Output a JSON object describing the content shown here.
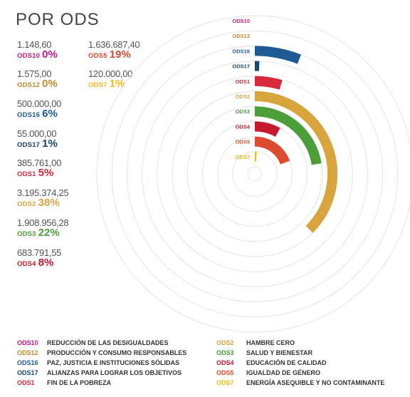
{
  "title": "POR ODS",
  "stats": [
    {
      "amount": "1.148,60",
      "code": "ODS10",
      "pct": "0%",
      "color": "#c5197d"
    },
    {
      "amount": "1.636.687,40",
      "code": "ODS5",
      "pct": "19%",
      "color": "#dd4a2f"
    },
    {
      "amount": "1.575,00",
      "code": "ODS12",
      "pct": "0%",
      "color": "#bf8b2e"
    },
    {
      "amount": "120.000,00",
      "code": "ODS7",
      "pct": "1%",
      "color": "#f2b815"
    },
    {
      "amount": "500.000,00",
      "code": "ODS16",
      "pct": "6%",
      "color": "#1e5b95"
    },
    {
      "amount": "55.000,00",
      "code": "ODS17",
      "pct": "1%",
      "color": "#19486a"
    },
    {
      "amount": "385.761,00",
      "code": "ODS1",
      "pct": "5%",
      "color": "#d8283a"
    },
    {
      "amount": "3.195.374,25",
      "code": "ODS2",
      "pct": "38%",
      "color": "#d8a43c"
    },
    {
      "amount": "1.908.956,28",
      "code": "ODS3",
      "pct": "22%",
      "color": "#4c9f38"
    },
    {
      "amount": "683.791,55",
      "code": "ODS4",
      "pct": "8%",
      "color": "#c5192d"
    }
  ],
  "chart_data": {
    "type": "radial-bar",
    "categories": [
      "ODS10",
      "ODS12",
      "ODS16",
      "ODS17",
      "ODS1",
      "ODS2",
      "ODS3",
      "ODS4",
      "ODS5",
      "ODS7"
    ],
    "values": [
      1148.6,
      1575.0,
      500000.0,
      55000.0,
      385761.0,
      3195374.25,
      1908956.28,
      683791.55,
      1636687.4,
      120000.0
    ],
    "colors": [
      "#c5197d",
      "#bf8b2e",
      "#1e5b95",
      "#19486a",
      "#d8283a",
      "#d8a43c",
      "#4c9f38",
      "#c5192d",
      "#dd4a2f",
      "#f2b815"
    ],
    "full_circle_value": 8487296
  },
  "legend": [
    {
      "code": "ODS10",
      "name": "REDUCCIÓN DE LAS DESIGUALDADES",
      "color": "#c5197d"
    },
    {
      "code": "ODS12",
      "name": "PRODUCCIÓN Y CONSUMO RESPONSABLES",
      "color": "#bf8b2e"
    },
    {
      "code": "ODS16",
      "name": "PAZ, JUSTICIA E INSTITUCIONES SÓLIDAS",
      "color": "#1e5b95"
    },
    {
      "code": "ODS17",
      "name": "ALIANZAS PARA LOGRAR LOS OBJETIVOS",
      "color": "#19486a"
    },
    {
      "code": "ODS1",
      "name": "FIN DE LA POBREZA",
      "color": "#d8283a"
    },
    {
      "code": "ODS2",
      "name": "HAMBRE CERO",
      "color": "#d8a43c"
    },
    {
      "code": "ODS3",
      "name": "SALUD Y BIENESTAR",
      "color": "#4c9f38"
    },
    {
      "code": "ODS4",
      "name": "EDUCACIÓN DE CALIDAD",
      "color": "#c5192d"
    },
    {
      "code": "ODS5",
      "name": "IGUALDAD DE GÉNERO",
      "color": "#dd4a2f"
    },
    {
      "code": "ODS7",
      "name": "ENERGÍA ASEQUIBLE Y NO CONTAMINANTE",
      "color": "#f2b815"
    }
  ]
}
